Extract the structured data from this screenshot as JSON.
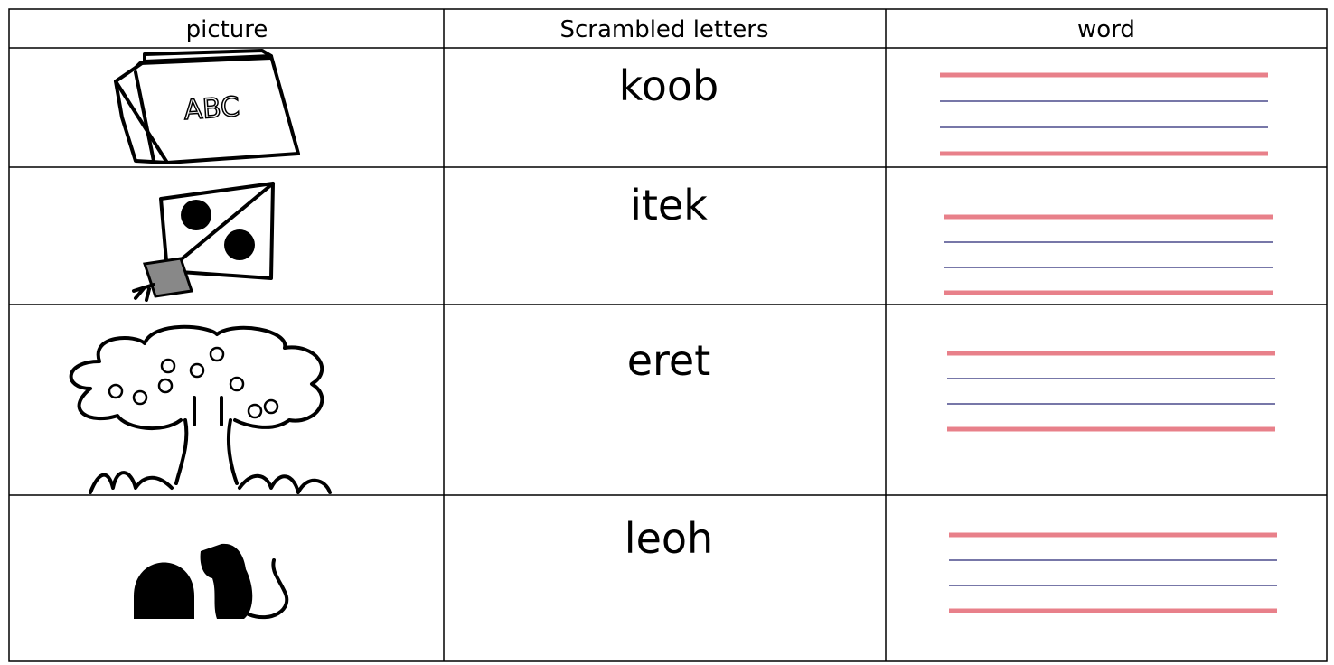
{
  "table": {
    "headers": [
      "picture",
      "Scrambled letters",
      "word"
    ],
    "rows": [
      {
        "picture_text": "ABC",
        "scrambled": "koob"
      },
      {
        "scrambled": "itek"
      },
      {
        "scrambled": "eret"
      },
      {
        "scrambled": "leoh"
      }
    ]
  }
}
